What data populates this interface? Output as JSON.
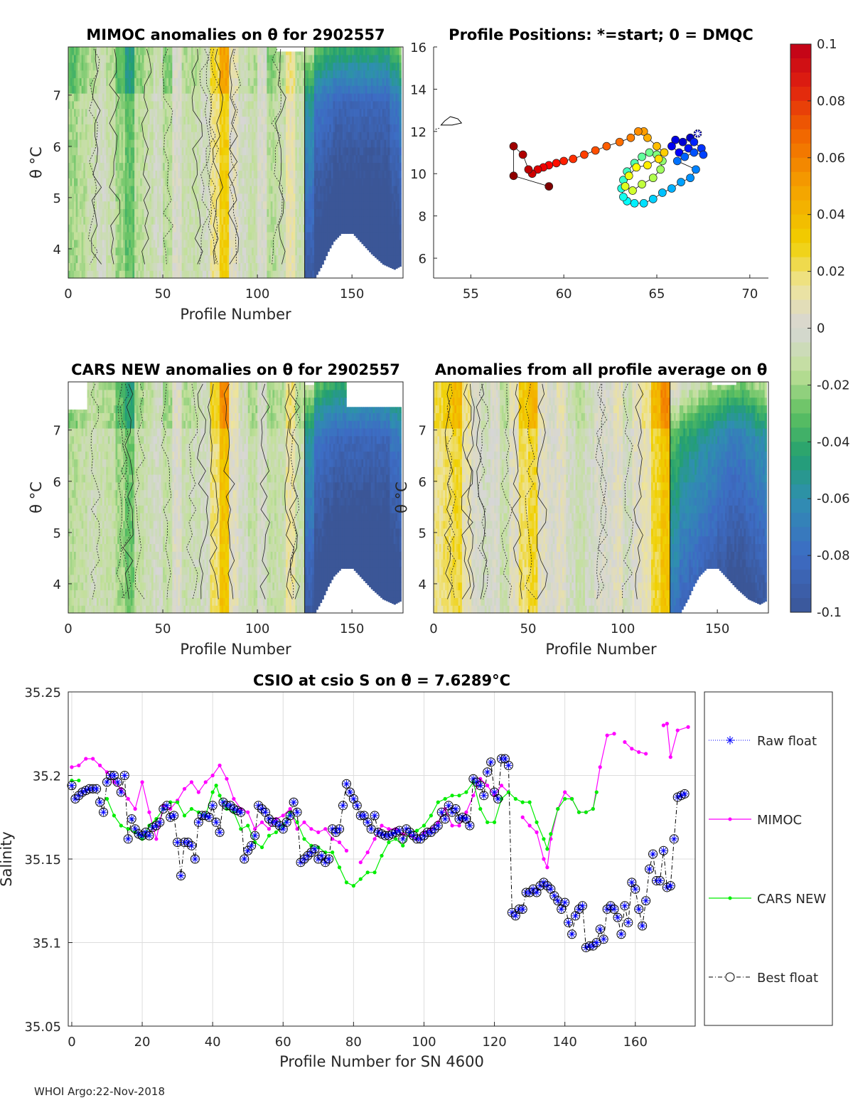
{
  "footer": "WHOI Argo:22-Nov-2018",
  "colorbar": {
    "min": -0.1,
    "max": 0.1,
    "ticks": [
      "0.1",
      "0.08",
      "0.06",
      "0.04",
      "0.02",
      "0",
      "-0.02",
      "-0.04",
      "-0.06",
      "-0.08",
      "-0.1"
    ],
    "stops": [
      [
        -0.1,
        "#3b5697"
      ],
      [
        -0.08,
        "#3d6cc4"
      ],
      [
        -0.06,
        "#2f8fb0"
      ],
      [
        -0.045,
        "#23a070"
      ],
      [
        -0.03,
        "#5fc060"
      ],
      [
        -0.015,
        "#c2e09a"
      ],
      [
        0,
        "#d6d6d6"
      ],
      [
        0.015,
        "#eee49a"
      ],
      [
        0.03,
        "#f0d000"
      ],
      [
        0.05,
        "#f5a000"
      ],
      [
        0.07,
        "#f06000"
      ],
      [
        0.085,
        "#e02010"
      ],
      [
        0.1,
        "#c00018"
      ]
    ]
  },
  "chart_data": [
    {
      "type": "heatmap",
      "title": "MIMOC anomalies on θ  for 2902557",
      "xlabel": "Profile Number",
      "ylabel": "θ °C",
      "xlim": [
        0,
        177
      ],
      "ylim": [
        3.43,
        7.94
      ],
      "xticks": [
        "0",
        "50",
        "100",
        "150"
      ],
      "yticks": [
        "4",
        "5",
        "6",
        "7"
      ],
      "column_step": 5,
      "column_anomaly": [
        -0.02,
        -0.015,
        -0.01,
        -0.005,
        -0.01,
        -0.02,
        -0.03,
        -0.015,
        -0.01,
        -0.005,
        -0.015,
        0,
        -0.01,
        -0.01,
        -0.005,
        0.015,
        0.03,
        0.005,
        -0.005,
        -0.01,
        0,
        -0.015,
        -0.01,
        0.01,
        -0.01,
        -0.07,
        -0.09,
        -0.095,
        -0.1,
        -0.1,
        -0.1,
        -0.1,
        -0.1,
        -0.1,
        -0.09,
        -0.08
      ]
    },
    {
      "type": "scatter",
      "title": "Profile Positions: *=start; 0 = DMQC",
      "xlim": [
        53.0,
        71.0
      ],
      "ylim": [
        5.06,
        16
      ],
      "xticks": [
        "55",
        "60",
        "65",
        "70"
      ],
      "yticks": [
        "6",
        "8",
        "10",
        "12",
        "14",
        "16"
      ],
      "lon": [
        67.2,
        66.8,
        66.4,
        66.0,
        65.8,
        66.2,
        66.7,
        67.0,
        67.4,
        67.5,
        67.0,
        66.5,
        66.1,
        67.1,
        66.8,
        66.3,
        65.8,
        65.3,
        64.8,
        64.3,
        63.8,
        63.4,
        63.2,
        63.1,
        63.2,
        63.4,
        63.8,
        64.2,
        64.6,
        65.0,
        65.3,
        65.2,
        64.8,
        64.2,
        63.7,
        63.3,
        63.5,
        63.9,
        64.5,
        65.1,
        65.4,
        65.0,
        64.5,
        64.3,
        64.0,
        63.6,
        63.0,
        62.3,
        61.7,
        61.1,
        60.5,
        60.0,
        59.6,
        59.2,
        58.9,
        58.6,
        58.3,
        58.1,
        57.8,
        57.3,
        57.3,
        59.2
      ],
      "lat": [
        11.9,
        11.7,
        11.5,
        11.6,
        11.3,
        11.0,
        11.2,
        11.5,
        11.2,
        10.9,
        11.0,
        10.8,
        10.6,
        10.2,
        9.8,
        9.6,
        9.3,
        9.1,
        8.8,
        8.6,
        8.6,
        8.7,
        8.9,
        9.3,
        9.7,
        10.1,
        10.5,
        10.8,
        11.0,
        10.9,
        10.6,
        10.2,
        9.8,
        9.5,
        9.2,
        9.4,
        9.9,
        10.3,
        10.4,
        10.7,
        11.0,
        11.3,
        11.7,
        12.0,
        12.0,
        11.7,
        11.5,
        11.3,
        11.1,
        10.9,
        10.7,
        10.6,
        10.5,
        10.4,
        10.3,
        10.2,
        10.0,
        10.2,
        10.9,
        11.3,
        9.9,
        9.4
      ]
    },
    {
      "type": "heatmap",
      "title": "CARS NEW anomalies on θ for 2902557",
      "xlabel": "Profile Number",
      "ylabel": "θ °C",
      "xlim": [
        0,
        177
      ],
      "ylim": [
        3.43,
        7.94
      ],
      "xticks": [
        "0",
        "50",
        "100",
        "150"
      ],
      "yticks": [
        "4",
        "5",
        "6",
        "7"
      ],
      "column_step": 5,
      "column_anomaly": [
        -0.015,
        -0.012,
        -0.008,
        -0.01,
        -0.012,
        -0.02,
        -0.028,
        -0.012,
        -0.008,
        -0.004,
        -0.012,
        0.002,
        -0.01,
        -0.008,
        -0.004,
        0.018,
        0.035,
        0.006,
        -0.004,
        -0.012,
        -0.002,
        -0.012,
        -0.01,
        0.012,
        -0.01,
        -0.07,
        -0.09,
        -0.095,
        -0.1,
        -0.1,
        -0.1,
        -0.1,
        -0.1,
        -0.1,
        -0.09,
        -0.085
      ]
    },
    {
      "type": "heatmap",
      "title": "Anomalies from all profile average on θ",
      "xlabel": "Profile Number",
      "ylabel": "θ °C",
      "xlim": [
        0,
        177
      ],
      "ylim": [
        3.43,
        7.94
      ],
      "xticks": [
        "0",
        "50",
        "100",
        "150"
      ],
      "yticks": [
        "4",
        "5",
        "6",
        "7"
      ],
      "column_step": 5,
      "column_anomaly": [
        0.015,
        0.02,
        0.025,
        0.01,
        0,
        -0.005,
        0,
        -0.01,
        0.005,
        0.02,
        0.025,
        0.005,
        0,
        0.005,
        -0.005,
        -0.01,
        -0.005,
        0,
        0,
        0.005,
        -0.005,
        0.005,
        0.01,
        0.025,
        0.035,
        -0.05,
        -0.06,
        -0.065,
        -0.07,
        -0.075,
        -0.08,
        -0.085,
        -0.085,
        -0.08,
        -0.075,
        -0.07
      ]
    },
    {
      "type": "line",
      "title": "CSIO at csio S on θ = 7.6289°C",
      "xlabel": "Profile Number for SN 4600",
      "ylabel": "Salinity",
      "xlim": [
        -1,
        177
      ],
      "ylim": [
        35.05,
        35.25
      ],
      "xticks": [
        "0",
        "20",
        "40",
        "60",
        "80",
        "100",
        "120",
        "140",
        "160"
      ],
      "yticks": [
        "35.25",
        "35.2",
        "35.15",
        "35.1",
        "35.05"
      ],
      "legend_position": "right-outside",
      "series": [
        {
          "name": "Raw float",
          "color": "#0000ff"
        },
        {
          "name": "MIMOC",
          "color": "#ff00ff",
          "x": [
            0,
            2,
            4,
            6,
            8,
            10,
            12,
            14,
            16,
            18,
            20,
            22,
            24,
            26,
            28,
            30,
            32,
            34,
            36,
            38,
            40,
            42,
            44,
            46,
            48,
            50,
            52,
            54,
            56,
            58,
            60,
            62,
            64,
            66,
            68,
            70,
            72,
            74,
            76,
            78,
            80,
            82,
            84,
            86,
            88,
            90,
            92,
            94,
            96,
            98,
            100,
            102,
            104,
            106,
            108,
            110,
            112,
            114,
            116,
            118,
            120,
            122,
            124,
            126,
            128,
            130,
            132,
            134,
            135,
            136,
            138,
            140,
            142,
            144,
            146,
            148,
            150,
            152,
            154,
            156,
            157,
            159,
            161,
            163,
            166,
            168,
            169,
            170,
            172,
            175
          ],
          "y": [
            35.205,
            35.206,
            35.21,
            35.21,
            35.206,
            35.202,
            35.196,
            35.192,
            35.186,
            35.18,
            35.196,
            35.178,
            35.162,
            35.182,
            35.18,
            35.185,
            35.192,
            35.196,
            35.19,
            35.196,
            35.2,
            35.206,
            35.198,
            35.186,
            35.18,
            35.178,
            35.168,
            35.172,
            35.168,
            35.174,
            35.176,
            35.18,
            35.168,
            35.172,
            35.168,
            35.166,
            35.168,
            35.162,
            35.16,
            35.155,
            null,
            35.148,
            35.154,
            35.162,
            35.17,
            35.168,
            35.168,
            35.165,
            35.164,
            35.162,
            35.166,
            35.168,
            35.172,
            35.18,
            35.17,
            35.17,
            35.178,
            35.188,
            35.198,
            35.194,
            35.188,
            35.194,
            35.19,
            null,
            35.175,
            35.17,
            35.166,
            35.15,
            35.145,
            35.162,
            35.18,
            35.19,
            35.186,
            35.178,
            35.178,
            35.18,
            35.205,
            35.224,
            35.225,
            null,
            35.22,
            35.216,
            35.214,
            35.213,
            null,
            35.23,
            35.231,
            35.211,
            35.227,
            35.229
          ]
        },
        {
          "name": "CARS NEW",
          "color": "#00ee00",
          "x": [
            0,
            2,
            4,
            10,
            12,
            14,
            16,
            18,
            20,
            22,
            24,
            26,
            28,
            30,
            32,
            34,
            36,
            38,
            40,
            41,
            42,
            44,
            46,
            48,
            50,
            52,
            54,
            56,
            58,
            60,
            62,
            64,
            66,
            68,
            70,
            72,
            74,
            76,
            78,
            80,
            82,
            84,
            86,
            88,
            90,
            92,
            94,
            96,
            98,
            100,
            102,
            104,
            106,
            108,
            110,
            112,
            114,
            116,
            118,
            120,
            122,
            124,
            126,
            128,
            130,
            132,
            134,
            135,
            136,
            138,
            140,
            142,
            144,
            146,
            148,
            149
          ],
          "y": [
            35.197,
            35.197,
            null,
            35.186,
            35.176,
            35.17,
            35.168,
            35.166,
            35.162,
            35.17,
            35.174,
            35.18,
            35.184,
            35.184,
            35.176,
            35.18,
            35.178,
            35.176,
            35.19,
            35.194,
            35.188,
            35.18,
            35.178,
            35.168,
            35.17,
            35.16,
            35.157,
            35.164,
            35.166,
            35.17,
            35.178,
            35.172,
            35.162,
            35.158,
            35.157,
            35.154,
            35.154,
            35.145,
            35.136,
            35.134,
            35.138,
            35.142,
            35.142,
            35.152,
            35.16,
            35.162,
            35.158,
            35.166,
            35.167,
            35.17,
            35.176,
            35.184,
            35.186,
            35.188,
            35.188,
            35.19,
            35.196,
            35.18,
            35.172,
            35.172,
            35.186,
            35.19,
            35.186,
            35.184,
            35.184,
            35.172,
            35.162,
            35.156,
            35.165,
            35.18,
            35.186,
            35.186,
            35.178,
            35.178,
            35.18,
            35.19
          ]
        },
        {
          "name": "Best float",
          "color": "#000000",
          "y": [
            35.194,
            35.186,
            35.188,
            35.19,
            35.191,
            35.192,
            35.192,
            35.192,
            35.184,
            35.178,
            35.196,
            35.2,
            35.2,
            35.196,
            35.19,
            35.2,
            35.162,
            35.174,
            35.168,
            35.165,
            35.164,
            35.166,
            35.164,
            35.169,
            35.17,
            35.172,
            35.18,
            35.182,
            35.175,
            35.176,
            35.16,
            35.14,
            35.16,
            35.16,
            35.158,
            35.15,
            35.172,
            35.176,
            35.176,
            35.175,
            35.182,
            35.172,
            35.166,
            35.184,
            35.182,
            35.182,
            35.18,
            35.179,
            35.178,
            35.15,
            35.155,
            35.158,
            35.164,
            35.182,
            35.18,
            35.178,
            35.174,
            35.172,
            35.172,
            35.17,
            35.168,
            35.172,
            35.176,
            35.184,
            35.178,
            35.148,
            35.15,
            35.152,
            35.154,
            35.156,
            35.15,
            35.152,
            35.148,
            35.15,
            35.168,
            35.166,
            35.168,
            35.182,
            35.195,
            35.19,
            35.186,
            35.182,
            35.176,
            35.176,
            35.172,
            35.168,
            35.176,
            35.166,
            35.165,
            35.164,
            35.164,
            35.165,
            35.166,
            35.167,
            35.162,
            35.168,
            35.166,
            35.164,
            35.162,
            35.162,
            35.164,
            35.166,
            35.166,
            35.168,
            35.17,
            35.178,
            35.174,
            35.182,
            35.178,
            35.18,
            35.174,
            35.175,
            35.174,
            35.17,
            35.198,
            35.196,
            35.194,
            35.188,
            35.202,
            35.208,
            35.19,
            35.186,
            35.21,
            35.21,
            35.206,
            35.118,
            35.116,
            35.12,
            35.12,
            35.13,
            35.13,
            35.132,
            35.13,
            35.134,
            35.136,
            35.134,
            35.132,
            35.128,
            35.125,
            35.12,
            35.124,
            35.112,
            35.105,
            35.116,
            35.12,
            35.122,
            35.097,
            35.098,
            35.098,
            35.1,
            35.108,
            35.102,
            35.12,
            35.122,
            35.12,
            35.115,
            35.105,
            35.122,
            35.112,
            35.136,
            35.132,
            35.12,
            35.11,
            35.125,
            35.144,
            35.153,
            35.137,
            35.137,
            35.155,
            35.133,
            35.134,
            35.162,
            35.187,
            35.188,
            35.189
          ]
        }
      ]
    }
  ]
}
